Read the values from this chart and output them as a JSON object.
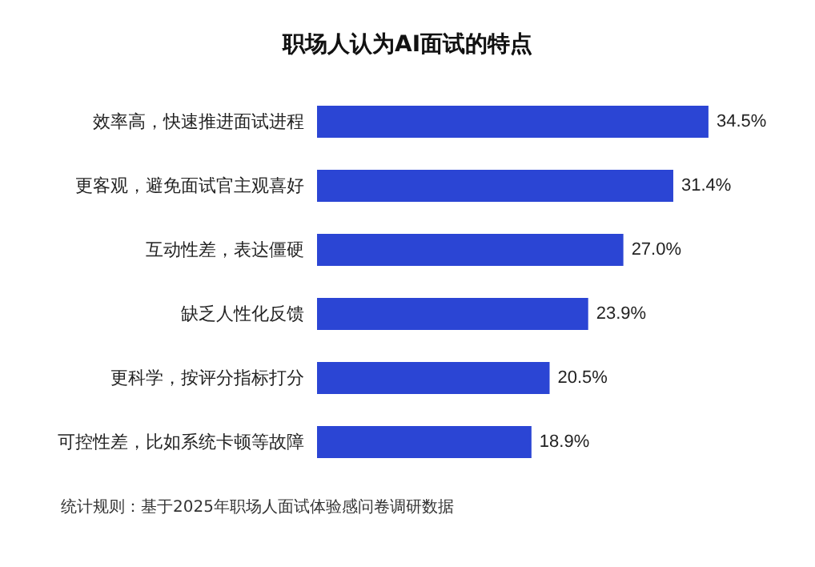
{
  "chart_data": {
    "type": "bar",
    "orientation": "horizontal",
    "title": "职场人认为AI面试的特点",
    "categories": [
      "效率高，快速推进面试进程",
      "更客观，避免面试官主观喜好",
      "互动性差，表达僵硬",
      "缺乏人性化反馈",
      "更科学，按评分指标打分",
      "可控性差，比如系统卡顿等故障"
    ],
    "values": [
      34.5,
      31.4,
      27.0,
      23.9,
      20.5,
      18.9
    ],
    "value_labels": [
      "34.5%",
      "31.4%",
      "27.0%",
      "23.9%",
      "20.5%",
      "18.9%"
    ],
    "color": "#2b45d4",
    "annotations": [
      "统计规则：基于2025年职场人面试体验感问卷调研数据"
    ]
  }
}
